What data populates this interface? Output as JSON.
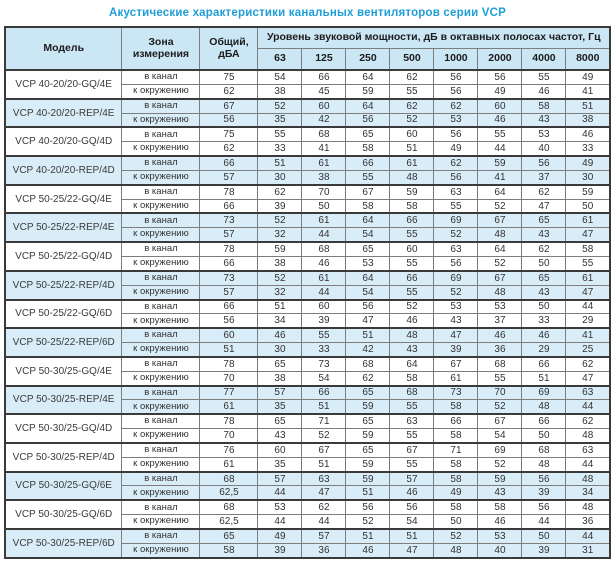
{
  "title": "Акустические характеристики канальных вентиляторов  серии VCP",
  "colors": {
    "title_text": "#1e9ed6",
    "header_bg": "#cbe6f5",
    "shaded_row_bg": "#d9edf8",
    "border_dark": "#3a3a3a"
  },
  "table": {
    "headers": {
      "model": "Модель",
      "zone": "Зона измерения",
      "total": "Общий, дБА",
      "spl": "Уровень звуковой мощности, дБ в октавных полосах частот, Гц",
      "frequencies": [
        "63",
        "125",
        "250",
        "500",
        "1000",
        "2000",
        "4000",
        "8000"
      ]
    },
    "groups": [
      {
        "model": "VCP 40-20/20-GQ/4E",
        "shaded": false,
        "rows": [
          {
            "zone": "в канал",
            "total": "75",
            "values": [
              54,
              66,
              64,
              62,
              56,
              56,
              55,
              49
            ]
          },
          {
            "zone": "к окружению",
            "total": "62",
            "values": [
              38,
              45,
              59,
              55,
              56,
              49,
              46,
              41
            ]
          }
        ]
      },
      {
        "model": "VCP 40-20/20-REP/4E",
        "shaded": true,
        "rows": [
          {
            "zone": "в канал",
            "total": "67",
            "values": [
              52,
              60,
              64,
              62,
              62,
              60,
              58,
              51
            ]
          },
          {
            "zone": "к окружению",
            "total": "56",
            "values": [
              35,
              42,
              56,
              52,
              53,
              46,
              43,
              38
            ]
          }
        ]
      },
      {
        "model": "VCP 40-20/20-GQ/4D",
        "shaded": false,
        "rows": [
          {
            "zone": "в канал",
            "total": "75",
            "values": [
              55,
              68,
              65,
              60,
              56,
              55,
              53,
              46
            ]
          },
          {
            "zone": "к окружению",
            "total": "62",
            "values": [
              33,
              41,
              58,
              51,
              49,
              44,
              40,
              33
            ]
          }
        ]
      },
      {
        "model": "VCP 40-20/20-REP/4D",
        "shaded": true,
        "rows": [
          {
            "zone": "в канал",
            "total": "66",
            "values": [
              51,
              61,
              66,
              61,
              62,
              59,
              56,
              49
            ]
          },
          {
            "zone": "к окружению",
            "total": "57",
            "values": [
              30,
              38,
              55,
              48,
              56,
              41,
              37,
              30
            ]
          }
        ]
      },
      {
        "model": "VCP 50-25/22-GQ/4E",
        "shaded": false,
        "rows": [
          {
            "zone": "в канал",
            "total": "78",
            "values": [
              62,
              70,
              67,
              59,
              63,
              64,
              62,
              59
            ]
          },
          {
            "zone": "к окружению",
            "total": "66",
            "values": [
              39,
              50,
              58,
              58,
              55,
              52,
              47,
              50
            ]
          }
        ]
      },
      {
        "model": "VCP 50-25/22-REP/4E",
        "shaded": true,
        "rows": [
          {
            "zone": "в канал",
            "total": "73",
            "values": [
              52,
              61,
              64,
              66,
              69,
              67,
              65,
              61
            ]
          },
          {
            "zone": "к окружению",
            "total": "57",
            "values": [
              32,
              44,
              54,
              55,
              52,
              48,
              43,
              47
            ]
          }
        ]
      },
      {
        "model": "VCP 50-25/22-GQ/4D",
        "shaded": false,
        "rows": [
          {
            "zone": "в канал",
            "total": "78",
            "values": [
              59,
              68,
              65,
              60,
              63,
              64,
              62,
              58
            ]
          },
          {
            "zone": "к окружению",
            "total": "66",
            "values": [
              38,
              46,
              53,
              55,
              56,
              52,
              50,
              55
            ]
          }
        ]
      },
      {
        "model": "VCP 50-25/22-REP/4D",
        "shaded": true,
        "rows": [
          {
            "zone": "в канал",
            "total": "73",
            "values": [
              52,
              61,
              64,
              66,
              69,
              67,
              65,
              61
            ]
          },
          {
            "zone": "к окружению",
            "total": "57",
            "values": [
              32,
              44,
              54,
              55,
              52,
              48,
              43,
              47
            ]
          }
        ]
      },
      {
        "model": "VCP 50-25/22-GQ/6D",
        "shaded": false,
        "rows": [
          {
            "zone": "в канал",
            "total": "66",
            "values": [
              51,
              60,
              56,
              52,
              53,
              53,
              50,
              44
            ]
          },
          {
            "zone": "к окружению",
            "total": "56",
            "values": [
              34,
              39,
              47,
              46,
              43,
              37,
              33,
              29
            ]
          }
        ]
      },
      {
        "model": "VCP 50-25/22-REP/6D",
        "shaded": true,
        "rows": [
          {
            "zone": "в канал",
            "total": "60",
            "values": [
              46,
              55,
              51,
              48,
              47,
              46,
              46,
              41
            ]
          },
          {
            "zone": "к окружению",
            "total": "51",
            "values": [
              30,
              33,
              42,
              43,
              39,
              36,
              29,
              25
            ]
          }
        ]
      },
      {
        "model": "VCP 50-30/25-GQ/4E",
        "shaded": false,
        "rows": [
          {
            "zone": "в канал",
            "total": "78",
            "values": [
              65,
              73,
              68,
              64,
              67,
              68,
              66,
              62
            ]
          },
          {
            "zone": "к окружению",
            "total": "70",
            "values": [
              38,
              54,
              62,
              58,
              61,
              55,
              51,
              47
            ]
          }
        ]
      },
      {
        "model": "VCP 50-30/25-REP/4E",
        "shaded": true,
        "rows": [
          {
            "zone": "в канал",
            "total": "77",
            "values": [
              57,
              66,
              65,
              68,
              73,
              70,
              69,
              63
            ]
          },
          {
            "zone": "к окружению",
            "total": "61",
            "values": [
              35,
              51,
              59,
              55,
              58,
              52,
              48,
              44
            ]
          }
        ]
      },
      {
        "model": "VCP 50-30/25-GQ/4D",
        "shaded": false,
        "rows": [
          {
            "zone": "в канал",
            "total": "78",
            "values": [
              65,
              71,
              65,
              63,
              66,
              67,
              66,
              62
            ]
          },
          {
            "zone": "к окружению",
            "total": "70",
            "values": [
              43,
              52,
              59,
              55,
              58,
              54,
              50,
              48
            ]
          }
        ]
      },
      {
        "model": "VCP 50-30/25-REP/4D",
        "shaded": false,
        "rows": [
          {
            "zone": "в канал",
            "total": "76",
            "values": [
              60,
              67,
              65,
              67,
              71,
              69,
              68,
              63
            ]
          },
          {
            "zone": "к окружению",
            "total": "61",
            "values": [
              35,
              51,
              59,
              55,
              58,
              52,
              48,
              44
            ]
          }
        ]
      },
      {
        "model": "VCP 50-30/25-GQ/6E",
        "shaded": true,
        "rows": [
          {
            "zone": "в канал",
            "total": "68",
            "values": [
              57,
              63,
              59,
              57,
              58,
              59,
              56,
              48
            ]
          },
          {
            "zone": "к окружению",
            "total": "62,5",
            "values": [
              44,
              47,
              51,
              46,
              49,
              43,
              39,
              34
            ]
          }
        ]
      },
      {
        "model": "VCP 50-30/25-GQ/6D",
        "shaded": false,
        "rows": [
          {
            "zone": "в канал",
            "total": "68",
            "values": [
              53,
              62,
              56,
              56,
              58,
              58,
              56,
              48
            ]
          },
          {
            "zone": "к окружению",
            "total": "62,5",
            "values": [
              44,
              44,
              52,
              54,
              50,
              46,
              44,
              36
            ]
          }
        ]
      },
      {
        "model": "VCP 50-30/25-REP/6D",
        "shaded": true,
        "rows": [
          {
            "zone": "в канал",
            "total": "65",
            "values": [
              49,
              57,
              51,
              51,
              52,
              53,
              50,
              44
            ]
          },
          {
            "zone": "к окружению",
            "total": "58",
            "values": [
              39,
              36,
              46,
              47,
              48,
              40,
              39,
              31
            ]
          }
        ]
      }
    ]
  }
}
